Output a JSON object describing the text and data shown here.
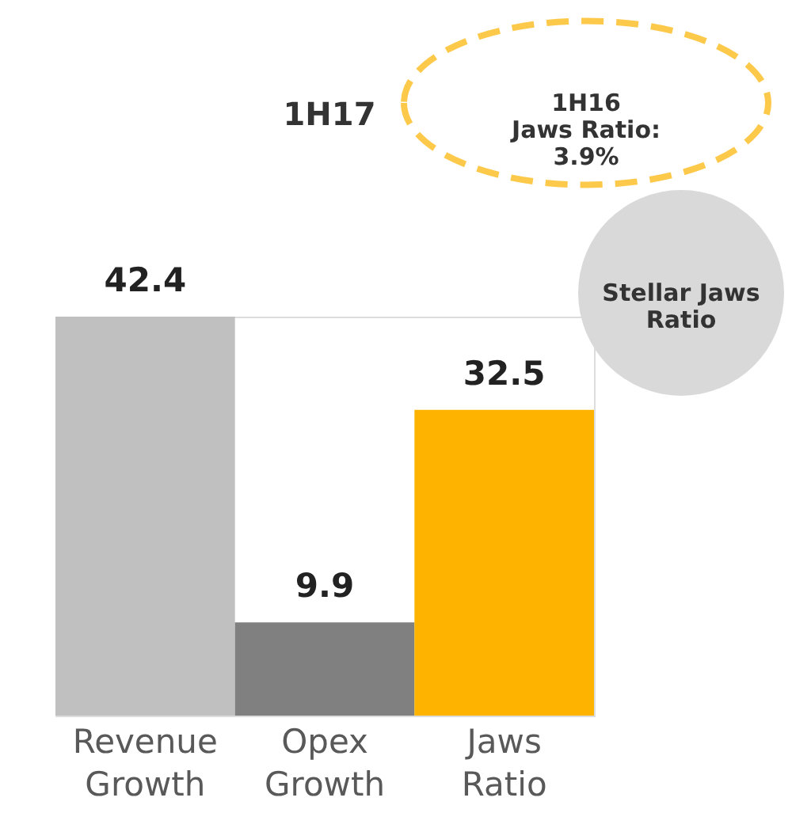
{
  "chart_data": {
    "type": "bar",
    "categories": [
      "Revenue Growth",
      "Opex Growth",
      "Jaws Ratio"
    ],
    "values": [
      42.4,
      9.9,
      32.5
    ],
    "colors": [
      "#c0c0c0",
      "#808080",
      "#fdb300"
    ],
    "data_labels": true,
    "annotations": [
      "1H17",
      "1H16\nJaws Ratio:\n3.9%",
      "Stellar Jaws\nRatio"
    ],
    "grid": false
  }
}
